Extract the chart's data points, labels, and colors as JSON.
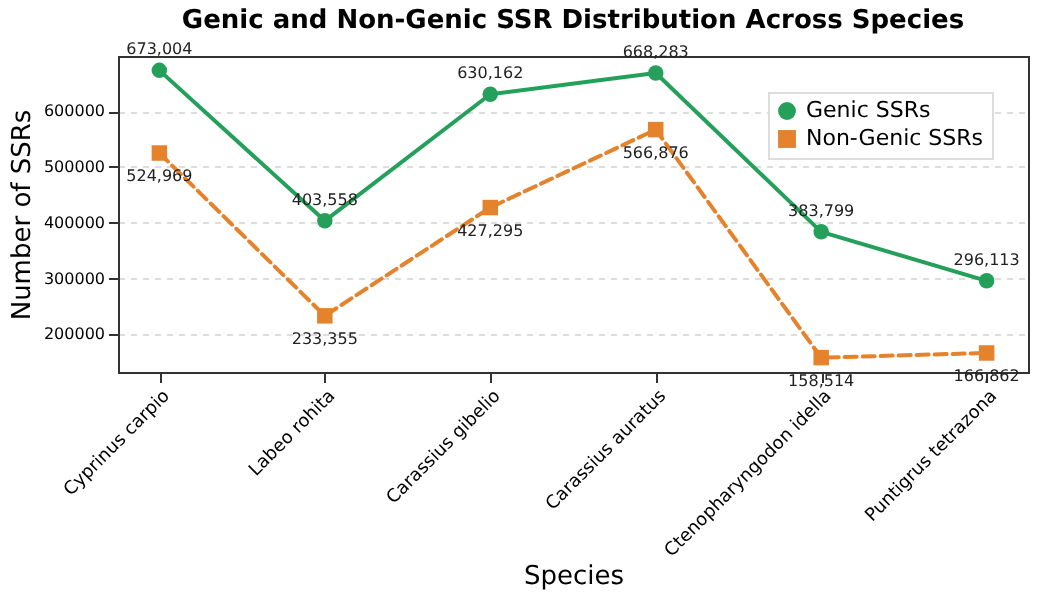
{
  "chart_data": {
    "type": "line",
    "title": "Genic and Non-Genic SSR Distribution Across Species",
    "xlabel": "Species",
    "ylabel": "Number of SSRs",
    "categories": [
      "Cyprinus carpio",
      "Labeo rohita",
      "Carassius gibelio",
      "Carassius auratus",
      "Ctenopharyngodon idella",
      "Puntigrus tetrazona"
    ],
    "series": [
      {
        "name": "Genic SSRs",
        "color": "#24a05a",
        "marker": "circle",
        "line_style": "solid",
        "values": [
          673004,
          403558,
          630162,
          668283,
          383799,
          296113
        ],
        "value_labels": [
          "673,004",
          "403,558",
          "630,162",
          "668,283",
          "383,799",
          "296,113"
        ]
      },
      {
        "name": "Non-Genic SSRs",
        "color": "#e5822c",
        "marker": "square",
        "line_style": "dashed",
        "values": [
          524969,
          233355,
          427295,
          566876,
          158514,
          166862
        ],
        "value_labels": [
          "524,969",
          "233,355",
          "427,295",
          "566,876",
          "158,514",
          "166,862"
        ]
      }
    ],
    "ylim": [
      132789,
      698729
    ],
    "yticks": [
      200000,
      300000,
      400000,
      500000,
      600000
    ],
    "grid": "y",
    "legend": "top right"
  }
}
